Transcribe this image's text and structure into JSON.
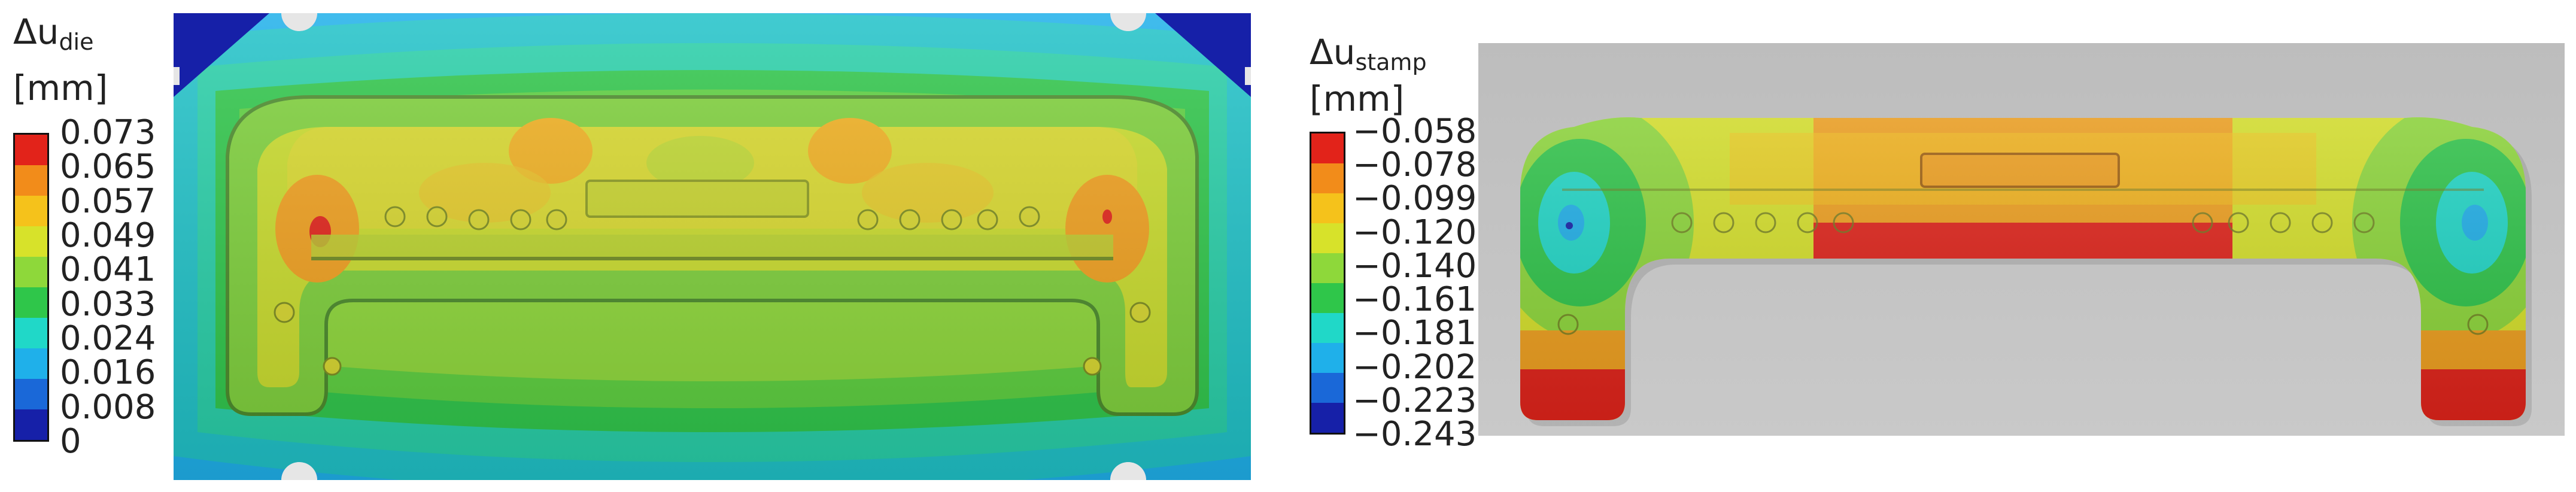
{
  "left_legend": {
    "title": "Δu",
    "subscript": "die",
    "unit": "[mm]",
    "values": [
      "0.073",
      "0.065",
      "0.057",
      "0.049",
      "0.041",
      "0.033",
      "0.024",
      "0.016",
      "0.008",
      "0"
    ],
    "colors": [
      "#e2231a",
      "#f28c1a",
      "#f5c21b",
      "#d7e22a",
      "#8ed83a",
      "#2fc64a",
      "#20d8c8",
      "#1fb0ea",
      "#1a68d8",
      "#1620a8"
    ]
  },
  "right_legend": {
    "title": "Δu",
    "subscript": "stamp",
    "unit": "[mm]",
    "values": [
      "−0.058",
      "−0.078",
      "−0.099",
      "−0.120",
      "−0.140",
      "−0.161",
      "−0.181",
      "−0.202",
      "−0.223",
      "−0.243"
    ],
    "colors": [
      "#e2231a",
      "#f28c1a",
      "#f5c21b",
      "#d7e22a",
      "#8ed83a",
      "#2fc64a",
      "#20d8c8",
      "#1fb0ea",
      "#1a68d8",
      "#1620a8"
    ]
  }
}
